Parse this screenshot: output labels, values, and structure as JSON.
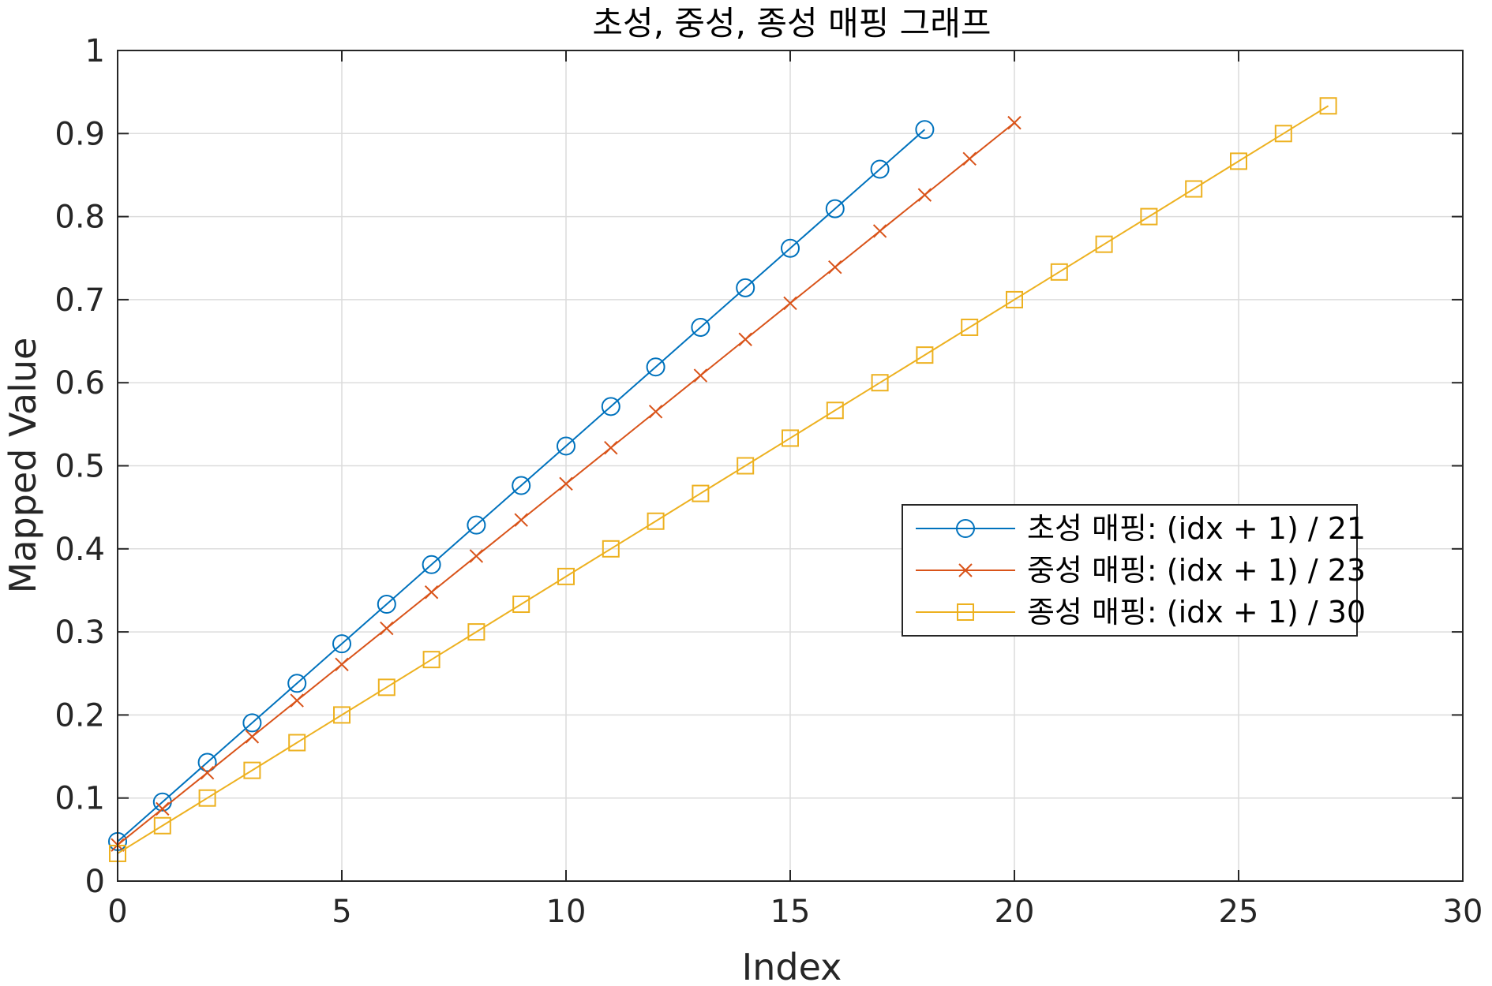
{
  "chart_data": {
    "type": "line",
    "title": "초성, 중성, 종성 매핑 그래프",
    "xlabel": "Index",
    "ylabel": "Mapped Value",
    "xlim": [
      0,
      30
    ],
    "ylim": [
      0,
      1
    ],
    "xticks": [
      "0",
      "5",
      "10",
      "15",
      "20",
      "25",
      "30"
    ],
    "yticks": [
      "0",
      "0.1",
      "0.2",
      "0.3",
      "0.4",
      "0.5",
      "0.6",
      "0.7",
      "0.8",
      "0.9",
      "1"
    ],
    "grid": true,
    "legend_position": "right",
    "series": [
      {
        "name": "초성 매핑: (idx + 1) / 21",
        "marker": "circle",
        "color": "#0072BD",
        "x": [
          0,
          1,
          2,
          3,
          4,
          5,
          6,
          7,
          8,
          9,
          10,
          11,
          12,
          13,
          14,
          15,
          16,
          17,
          18
        ],
        "y": [
          0.0476,
          0.0952,
          0.1429,
          0.1905,
          0.2381,
          0.2857,
          0.3333,
          0.381,
          0.4286,
          0.4762,
          0.5238,
          0.5714,
          0.619,
          0.6667,
          0.7143,
          0.7619,
          0.8095,
          0.8571,
          0.9048
        ]
      },
      {
        "name": "중성 매핑: (idx + 1) / 23",
        "marker": "x",
        "color": "#D95319",
        "x": [
          0,
          1,
          2,
          3,
          4,
          5,
          6,
          7,
          8,
          9,
          10,
          11,
          12,
          13,
          14,
          15,
          16,
          17,
          18,
          19,
          20
        ],
        "y": [
          0.0435,
          0.087,
          0.1304,
          0.1739,
          0.2174,
          0.2609,
          0.3043,
          0.3478,
          0.3913,
          0.4348,
          0.4783,
          0.5217,
          0.5652,
          0.6087,
          0.6522,
          0.6957,
          0.7391,
          0.7826,
          0.8261,
          0.8696,
          0.913
        ]
      },
      {
        "name": "종성 매핑: (idx + 1) / 30",
        "marker": "square",
        "color": "#EDB120",
        "x": [
          0,
          1,
          2,
          3,
          4,
          5,
          6,
          7,
          8,
          9,
          10,
          11,
          12,
          13,
          14,
          15,
          16,
          17,
          18,
          19,
          20,
          21,
          22,
          23,
          24,
          25,
          26,
          27
        ],
        "y": [
          0.0333,
          0.0667,
          0.1,
          0.1333,
          0.1667,
          0.2,
          0.2333,
          0.2667,
          0.3,
          0.3333,
          0.3667,
          0.4,
          0.4333,
          0.4667,
          0.5,
          0.5333,
          0.5667,
          0.6,
          0.6333,
          0.6667,
          0.7,
          0.7333,
          0.7667,
          0.8,
          0.8333,
          0.8667,
          0.9,
          0.9333
        ]
      }
    ]
  }
}
